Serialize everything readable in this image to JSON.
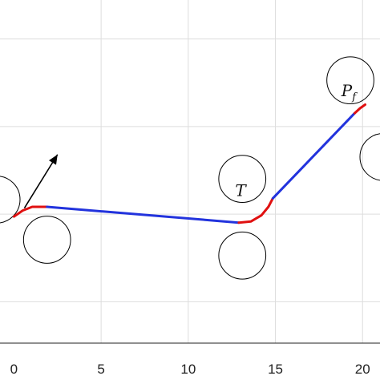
{
  "chart_data": {
    "type": "line",
    "title": "",
    "xlabel": "",
    "ylabel": "",
    "xlim": [
      -0.8,
      21
    ],
    "ylim": [
      -5.3,
      8.8
    ],
    "xticks": [
      0,
      5,
      10,
      15,
      20
    ],
    "xtick_labels": [
      "0",
      "5",
      "10",
      "15",
      "20"
    ],
    "grid": true,
    "gridlines_x": [
      5,
      10,
      15,
      20
    ],
    "gridlines_y": [
      -3.6,
      0,
      3.6,
      7.2
    ],
    "colors": {
      "turn": "#e01010",
      "straight": "#2233dd",
      "circle": "#000000",
      "grid": "#dddddd"
    },
    "circles": [
      {
        "cx": -1.0,
        "cy": 0.6,
        "r": 1.35
      },
      {
        "cx": 1.9,
        "cy": -1.05,
        "r": 1.35
      },
      {
        "cx": 13.1,
        "cy": 1.45,
        "r": 1.35
      },
      {
        "cx": 13.1,
        "cy": -1.7,
        "r": 1.35
      },
      {
        "cx": 19.3,
        "cy": 5.5,
        "r": 1.35
      },
      {
        "cx": 21.2,
        "cy": 2.35,
        "r": 1.35
      }
    ],
    "path_segments": [
      {
        "kind": "turn",
        "points": [
          [
            0.0,
            -0.1
          ],
          [
            0.5,
            0.15
          ],
          [
            1.05,
            0.3
          ],
          [
            1.55,
            0.3
          ],
          [
            1.9,
            0.3
          ]
        ]
      },
      {
        "kind": "straight",
        "points": [
          [
            1.9,
            0.3
          ],
          [
            12.9,
            -0.35
          ]
        ]
      },
      {
        "kind": "turn",
        "points": [
          [
            12.9,
            -0.35
          ],
          [
            13.6,
            -0.3
          ],
          [
            14.2,
            -0.05
          ],
          [
            14.6,
            0.3
          ],
          [
            14.85,
            0.65
          ]
        ]
      },
      {
        "kind": "straight",
        "points": [
          [
            14.85,
            0.65
          ],
          [
            19.55,
            4.15
          ]
        ]
      },
      {
        "kind": "turn",
        "points": [
          [
            19.55,
            4.15
          ],
          [
            19.85,
            4.35
          ],
          [
            20.15,
            4.5
          ]
        ]
      }
    ],
    "heading_arrow": {
      "from": [
        0.6,
        0.25
      ],
      "to": [
        2.5,
        2.45
      ]
    },
    "annotations": [
      {
        "id": "T",
        "main": "T",
        "sub": "",
        "x": 13.0,
        "y": 0.75
      },
      {
        "id": "Pf",
        "main": "P",
        "sub": "f",
        "x": 19.2,
        "y": 4.85
      }
    ]
  }
}
